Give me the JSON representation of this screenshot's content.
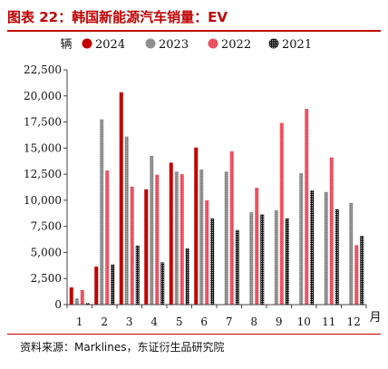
{
  "figure": {
    "title": "图表 22：韩国新能源汽车销量：EV",
    "source": "资料来源：Marklines，东证衍生品研究院"
  },
  "chart_data": {
    "type": "bar",
    "title": "",
    "xlabel": "月",
    "ylabel": "辆",
    "ylim": [
      0,
      22500
    ],
    "ytick_values": [
      0,
      2500,
      5000,
      7500,
      10000,
      12500,
      15000,
      17500,
      20000,
      22500
    ],
    "ytick_labels": [
      "0",
      "2,500",
      "5,000",
      "7,500",
      "10,000",
      "12,500",
      "15,000",
      "17,500",
      "20,000",
      "22,500"
    ],
    "categories": [
      "1",
      "2",
      "3",
      "4",
      "5",
      "6",
      "7",
      "8",
      "9",
      "10",
      "11",
      "12"
    ],
    "legend_position": "top",
    "grid": false,
    "series": [
      {
        "name": "2024",
        "color": "#c00000",
        "style": "solid",
        "values": [
          1650,
          3650,
          20350,
          11050,
          13600,
          15050,
          null,
          null,
          null,
          null,
          null,
          null
        ]
      },
      {
        "name": "2023",
        "color": "#8c8c8c",
        "style": "hatched",
        "values": [
          600,
          17750,
          16100,
          14250,
          12750,
          12950,
          12750,
          8850,
          9050,
          12600,
          10800,
          9750
        ]
      },
      {
        "name": "2022",
        "color": "#ef4a5a",
        "style": "hatched",
        "values": [
          1400,
          12850,
          11300,
          12450,
          12500,
          10000,
          14700,
          11200,
          17400,
          18750,
          14100,
          5700
        ]
      },
      {
        "name": "2021",
        "color": "#111111",
        "style": "checkered",
        "values": [
          150,
          3850,
          5650,
          4050,
          5400,
          8250,
          7150,
          8650,
          8250,
          10950,
          9150,
          6600
        ]
      }
    ]
  }
}
